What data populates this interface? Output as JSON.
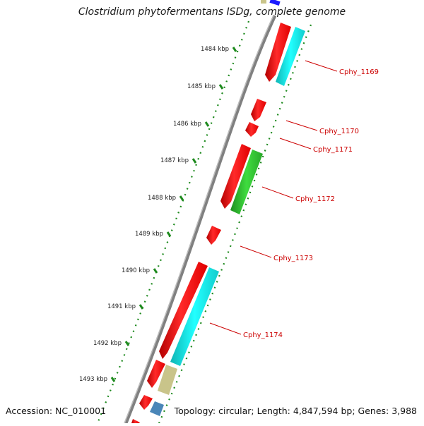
{
  "title": "Clostridium phytofermentans ISDg, complete genome",
  "accession": "Accession: NC_010001",
  "summary": "Topology: circular; Length: 4,847,594 bp; Genes: 3,988",
  "ticks": [
    "1484 kbp",
    "1485 kbp",
    "1486 kbp",
    "1487 kbp",
    "1488 kbp",
    "1489 kbp",
    "1490 kbp",
    "1491 kbp",
    "1492 kbp",
    "1493 kbp"
  ],
  "gene_labels": [
    "Cphy_1169",
    "Cphy_1170",
    "Cphy_1171",
    "Cphy_1172",
    "Cphy_1173",
    "Cphy_1174"
  ],
  "colors": {
    "cds": "#ff0000",
    "cog_cyan": "#19e6e6",
    "cog_green": "#33cc33",
    "cog_khaki": "#c9c48a",
    "cog_steel": "#4a86b8",
    "cog_blue": "#1a1aff",
    "backbone": "#808080",
    "tick_green": "#1e8a1e",
    "label_red": "#cc0000"
  }
}
